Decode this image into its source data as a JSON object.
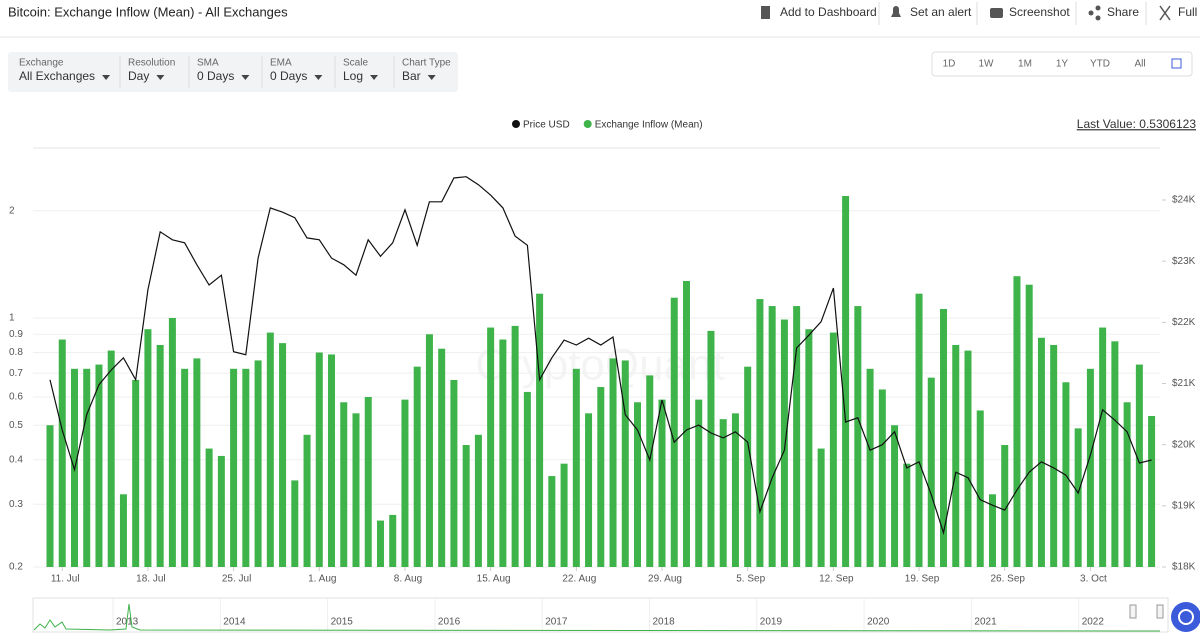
{
  "header": {
    "title": "Bitcoin: Exchange Inflow (Mean) - All Exchanges",
    "toolbar": [
      "Add to Dashboard",
      "Set an alert",
      "Screenshot",
      "Share",
      "Full"
    ]
  },
  "filters": [
    {
      "label": "Exchange",
      "value": "All Exchanges"
    },
    {
      "label": "Resolution",
      "value": "Day"
    },
    {
      "label": "SMA",
      "value": "0 Days"
    },
    {
      "label": "EMA",
      "value": "0 Days"
    },
    {
      "label": "Scale",
      "value": "Log"
    },
    {
      "label": "Chart Type",
      "value": "Bar"
    }
  ],
  "ranges": [
    "1D",
    "1W",
    "1M",
    "1Y",
    "YTD",
    "All"
  ],
  "chart_data": {
    "type": "bar",
    "log_scale": true,
    "grid": true,
    "last_value_label": "Last Value: 0.5306123",
    "watermark": "CryptoQuant",
    "categories": [
      null,
      "11. Jul",
      null,
      null,
      null,
      null,
      null,
      null,
      "18. Jul",
      null,
      null,
      null,
      null,
      null,
      null,
      "25. Jul",
      null,
      null,
      null,
      null,
      null,
      null,
      "1. Aug",
      null,
      null,
      null,
      null,
      null,
      null,
      "8. Aug",
      null,
      null,
      null,
      null,
      null,
      null,
      "15. Aug",
      null,
      null,
      null,
      null,
      null,
      null,
      "22. Aug",
      null,
      null,
      null,
      null,
      null,
      null,
      "29. Aug",
      null,
      null,
      null,
      null,
      null,
      null,
      "5. Sep",
      null,
      null,
      null,
      null,
      null,
      null,
      "12. Sep",
      null,
      null,
      null,
      null,
      null,
      null,
      "19. Sep",
      null,
      null,
      null,
      null,
      null,
      null,
      "26. Sep",
      null,
      null,
      null,
      null,
      null,
      null,
      "3. Oct",
      null,
      null,
      null,
      null,
      null
    ],
    "series": [
      {
        "name": "Price USD",
        "color": "#111111",
        "type": "line",
        "axis": "y2",
        "values": [
          21060,
          20240,
          19590,
          20490,
          20980,
          21220,
          21420,
          21060,
          22530,
          23480,
          23350,
          23300,
          22940,
          22610,
          22770,
          21520,
          21470,
          23050,
          23870,
          23800,
          23710,
          23380,
          23350,
          23050,
          22940,
          22770,
          23350,
          23080,
          23300,
          23840,
          23260,
          23970,
          23970,
          24360,
          24380,
          24250,
          24080,
          23870,
          23410,
          23260,
          21060,
          21420,
          21710,
          21630,
          21740,
          21630,
          21760,
          20490,
          20240,
          19750,
          20730,
          20040,
          20240,
          20320,
          20190,
          20110,
          20210,
          20040,
          18900,
          19460,
          19910,
          21580,
          21790,
          22010,
          22560,
          20370,
          20440,
          19910,
          20000,
          20210,
          19620,
          19720,
          19180,
          18560,
          19550,
          19460,
          19100,
          19010,
          18930,
          19260,
          19550,
          19720,
          19620,
          19500,
          19210,
          19830,
          20570,
          20400,
          20210,
          19700,
          19750
        ]
      },
      {
        "name": "Exchange Inflow (Mean)",
        "color": "#3db34a",
        "type": "bar",
        "values": [
          0.5,
          0.87,
          0.72,
          0.72,
          0.74,
          0.81,
          0.32,
          0.67,
          0.93,
          0.84,
          1.0,
          0.72,
          0.77,
          0.43,
          0.41,
          0.72,
          0.72,
          0.76,
          0.91,
          0.85,
          0.35,
          0.47,
          0.8,
          0.79,
          0.58,
          0.54,
          0.6,
          0.27,
          0.28,
          0.59,
          0.73,
          0.9,
          0.82,
          0.67,
          0.44,
          0.47,
          0.94,
          0.87,
          0.95,
          0.62,
          1.17,
          0.36,
          0.39,
          0.72,
          0.54,
          0.64,
          0.77,
          0.76,
          0.58,
          0.69,
          0.59,
          1.14,
          1.27,
          0.59,
          0.92,
          0.52,
          0.54,
          0.73,
          1.13,
          1.08,
          0.99,
          1.08,
          0.93,
          0.43,
          0.91,
          2.2,
          1.08,
          0.72,
          0.63,
          0.5,
          0.39,
          1.17,
          0.68,
          1.06,
          0.84,
          0.81,
          0.55,
          0.32,
          0.44,
          1.31,
          1.24,
          0.88,
          0.84,
          0.66,
          0.49,
          0.72,
          0.94,
          0.86,
          0.58,
          0.74,
          0.5306123
        ]
      }
    ],
    "ylim": [
      0.2,
      3.0
    ],
    "yticks": [
      0.2,
      0.3,
      0.4,
      0.5,
      0.6,
      0.7,
      0.8,
      0.9,
      1,
      2
    ],
    "y2lim": [
      18000,
      24850
    ],
    "y2ticks": [
      {
        "value": 18000,
        "label": "$18K"
      },
      {
        "value": 19000,
        "label": "$19K"
      },
      {
        "value": 20000,
        "label": "$20K"
      },
      {
        "value": 21000,
        "label": "$21K"
      },
      {
        "value": 22000,
        "label": "$22K"
      },
      {
        "value": 23000,
        "label": "$23K"
      },
      {
        "value": 24000,
        "label": "$24K"
      }
    ]
  },
  "navigator": {
    "years": [
      "2013",
      "2014",
      "2015",
      "2016",
      "2017",
      "2018",
      "2019",
      "2020",
      "2021",
      "2022"
    ]
  }
}
